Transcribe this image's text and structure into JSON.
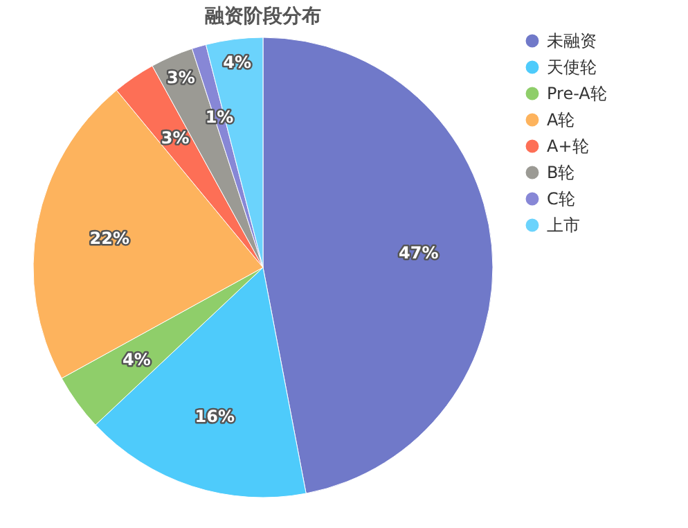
{
  "chart_data": {
    "type": "pie",
    "title": "融资阶段分布",
    "categories": [
      "未融资",
      "天使轮",
      "Pre-A轮",
      "A轮",
      "A+轮",
      "B轮",
      "C轮",
      "上市"
    ],
    "values": [
      47,
      16,
      4,
      22,
      3,
      3,
      1,
      4
    ],
    "colors": [
      "#7079c9",
      "#4ecbfb",
      "#8fce6a",
      "#fdb35d",
      "#fd6f56",
      "#9b9a94",
      "#8787d6",
      "#6bd3fc"
    ],
    "value_labels": [
      "47%",
      "16%",
      "4%",
      "22%",
      "3%",
      "3%",
      "1%",
      "4%"
    ],
    "legend": "right"
  }
}
